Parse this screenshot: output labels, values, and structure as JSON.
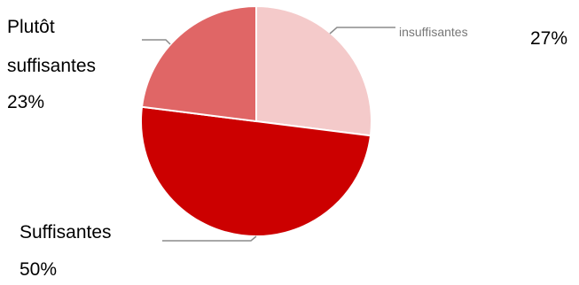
{
  "chart_data": {
    "type": "pie",
    "slices": [
      {
        "label": "insuffisantes",
        "value": 27,
        "pct_text": "27%",
        "color": "#f4caca"
      },
      {
        "label_lines": [
          "Suffisantes"
        ],
        "value": 50,
        "pct_text": "50%",
        "color": "#cc0000"
      },
      {
        "label_lines": [
          "Plutôt",
          "suffisantes"
        ],
        "value": 23,
        "pct_text": "23%",
        "color": "#e06666"
      }
    ]
  }
}
